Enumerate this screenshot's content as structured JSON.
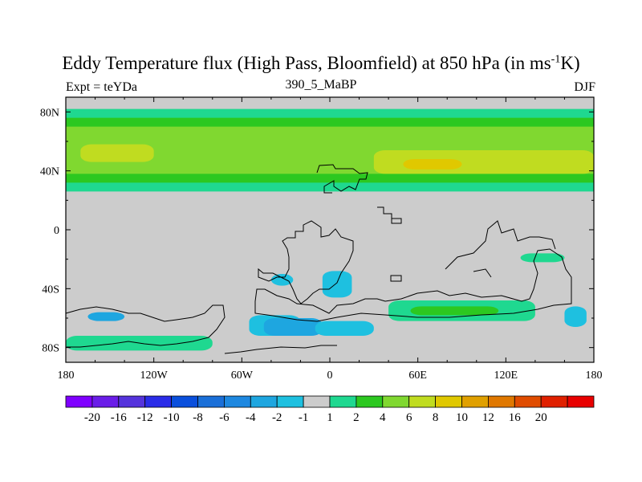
{
  "chart_data": {
    "type": "heatmap",
    "title_main": "Eddy Temperature flux (High Pass, Bloomfield) at 850 hPa (in ms",
    "title_sup": "-1",
    "title_end": "K)",
    "subtitle_left": "Expt = teYDa",
    "subtitle_center": "390_5_MaBP",
    "subtitle_right": "DJF",
    "x_ticks": [
      "180",
      "120W",
      "60W",
      "0",
      "60E",
      "120E",
      "180"
    ],
    "x_tick_values": [
      -180,
      -120,
      -60,
      0,
      60,
      120,
      180
    ],
    "y_ticks": [
      "80N",
      "40N",
      "0",
      "40S",
      "80S"
    ],
    "y_tick_values": [
      80,
      40,
      0,
      -40,
      -80
    ],
    "xlim": [
      -180,
      180
    ],
    "ylim": [
      -90,
      90
    ],
    "colorbar": {
      "colors": [
        "#7f00ff",
        "#6a1de8",
        "#5533dc",
        "#2a2ce8",
        "#0a4fdc",
        "#1a6fd8",
        "#1e88e0",
        "#1ea6e0",
        "#1ec0e0",
        "#cccccc",
        "#1fd890",
        "#2cc820",
        "#80d830",
        "#c0dc20",
        "#e0c800",
        "#e0a000",
        "#e07800",
        "#e04c00",
        "#e02000",
        "#e80000"
      ],
      "labels": [
        "-20",
        "-16",
        "-12",
        "-10",
        "-8",
        "-6",
        "-4",
        "-2",
        "-1",
        "1",
        "2",
        "4",
        "6",
        "8",
        "10",
        "12",
        "16",
        "20"
      ]
    },
    "regions": [
      {
        "name": "nh-band-outer",
        "color": "#1fd890",
        "lon": [
          -180,
          180
        ],
        "lat": [
          26,
          82
        ]
      },
      {
        "name": "nh-band-mid",
        "color": "#2cc820",
        "lon": [
          -180,
          180
        ],
        "lat": [
          32,
          76
        ]
      },
      {
        "name": "nh-band-inner",
        "color": "#80d830",
        "lon": [
          -180,
          180
        ],
        "lat": [
          38,
          70
        ]
      },
      {
        "name": "nh-core-atlantic",
        "color": "#c0dc20",
        "lon": [
          -170,
          -120
        ],
        "lat": [
          46,
          58
        ]
      },
      {
        "name": "nh-core-asia",
        "color": "#c0dc20",
        "lon": [
          30,
          180
        ],
        "lat": [
          38,
          54
        ]
      },
      {
        "name": "nh-peak-asia",
        "color": "#e0c800",
        "lon": [
          50,
          90
        ],
        "lat": [
          41,
          48
        ]
      },
      {
        "name": "sh-storm-south-america",
        "color": "#1ec0e0",
        "lon": [
          -55,
          -20
        ],
        "lat": [
          -72,
          -58
        ]
      },
      {
        "name": "sh-storm-atlantic",
        "color": "#1ea6e0",
        "lon": [
          -45,
          -5
        ],
        "lat": [
          -72,
          -60
        ]
      },
      {
        "name": "sh-storm-africa",
        "color": "#1ec0e0",
        "lon": [
          -10,
          30
        ],
        "lat": [
          -72,
          -62
        ]
      },
      {
        "name": "sh-band-pacific",
        "color": "#1fd890",
        "lon": [
          -180,
          -80
        ],
        "lat": [
          -82,
          -72
        ]
      },
      {
        "name": "sh-band-indian",
        "color": "#1fd890",
        "lon": [
          40,
          140
        ],
        "lat": [
          -62,
          -48
        ]
      },
      {
        "name": "sh-band-indian-core",
        "color": "#2cc820",
        "lon": [
          55,
          115
        ],
        "lat": [
          -58,
          -52
        ]
      },
      {
        "name": "sh-blob-madagascar",
        "color": "#1ec0e0",
        "lon": [
          -5,
          15
        ],
        "lat": [
          -46,
          -28
        ]
      },
      {
        "name": "sh-blob-andes",
        "color": "#1ec0e0",
        "lon": [
          -40,
          -25
        ],
        "lat": [
          -38,
          -30
        ]
      },
      {
        "name": "sh-blob-australia",
        "color": "#1fd890",
        "lon": [
          130,
          160
        ],
        "lat": [
          -22,
          -16
        ]
      },
      {
        "name": "sh-blob-tasman",
        "color": "#1ec0e0",
        "lon": [
          160,
          175
        ],
        "lat": [
          -66,
          -52
        ]
      },
      {
        "name": "sh-blob-pacific-south",
        "color": "#1ea6e0",
        "lon": [
          -165,
          -140
        ],
        "lat": [
          -62,
          -56
        ]
      }
    ]
  }
}
